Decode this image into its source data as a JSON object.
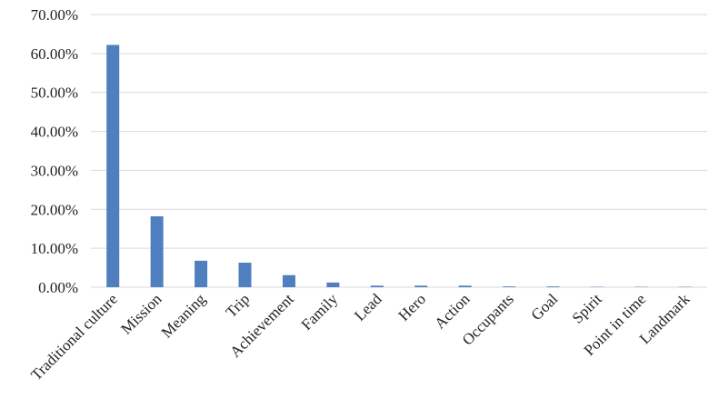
{
  "chart_data": {
    "type": "bar",
    "categories": [
      "Traditional culture",
      "Mission",
      "Meaning",
      "Trip",
      "Achievement",
      "Family",
      "Lead",
      "Hero",
      "Action",
      "Occupants",
      "Goal",
      "Spirit",
      "Point in time",
      "Landmark"
    ],
    "values": [
      62.2,
      18.2,
      6.8,
      6.3,
      3.1,
      1.2,
      0.4,
      0.4,
      0.4,
      0.2,
      0.2,
      0.1,
      0.1,
      0.1
    ],
    "color": "#4f7fbf",
    "ylim": [
      0,
      70
    ],
    "yticks": [
      {
        "value": 0,
        "label": "0.00%"
      },
      {
        "value": 10,
        "label": "10.00%"
      },
      {
        "value": 20,
        "label": "20.00%"
      },
      {
        "value": 30,
        "label": "30.00%"
      },
      {
        "value": 40,
        "label": "40.00%"
      },
      {
        "value": 50,
        "label": "50.00%"
      },
      {
        "value": 60,
        "label": "60.00%"
      },
      {
        "value": 70,
        "label": "70.00%"
      }
    ],
    "grid": true
  }
}
